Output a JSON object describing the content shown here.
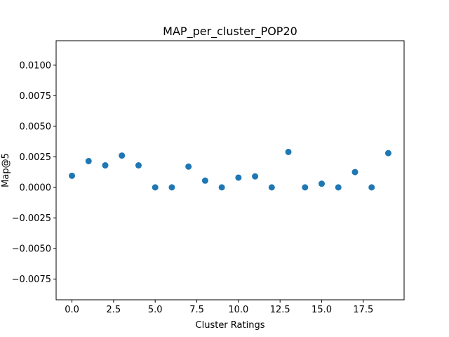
{
  "chart_data": {
    "type": "scatter",
    "title": "MAP_per_cluster_POP20",
    "xlabel": "Cluster Ratings",
    "ylabel": "Map@5",
    "xlim": [
      -0.95,
      19.95
    ],
    "ylim": [
      -0.0092,
      0.012
    ],
    "xticks": [
      0.0,
      2.5,
      5.0,
      7.5,
      10.0,
      12.5,
      15.0,
      17.5
    ],
    "xtick_labels": [
      "0.0",
      "2.5",
      "5.0",
      "7.5",
      "10.0",
      "12.5",
      "15.0",
      "17.5"
    ],
    "yticks": [
      -0.0075,
      -0.005,
      -0.0025,
      0.0,
      0.0025,
      0.005,
      0.0075,
      0.01
    ],
    "ytick_labels": [
      "−0.0075",
      "−0.0050",
      "−0.0025",
      "0.0000",
      "0.0025",
      "0.0050",
      "0.0075",
      "0.0100"
    ],
    "grid": false,
    "marker_color": "#1f77b4",
    "x": [
      0,
      1,
      2,
      3,
      4,
      5,
      6,
      7,
      8,
      9,
      10,
      11,
      12,
      13,
      14,
      15,
      16,
      17,
      18,
      19
    ],
    "y": [
      0.00095,
      0.00215,
      0.0018,
      0.0026,
      0.0018,
      0.0,
      0.0,
      0.0017,
      0.00055,
      0.0,
      0.0008,
      0.0009,
      0.0,
      0.0029,
      0.0,
      0.0003,
      0.0,
      0.00125,
      0.0,
      0.0028
    ]
  }
}
